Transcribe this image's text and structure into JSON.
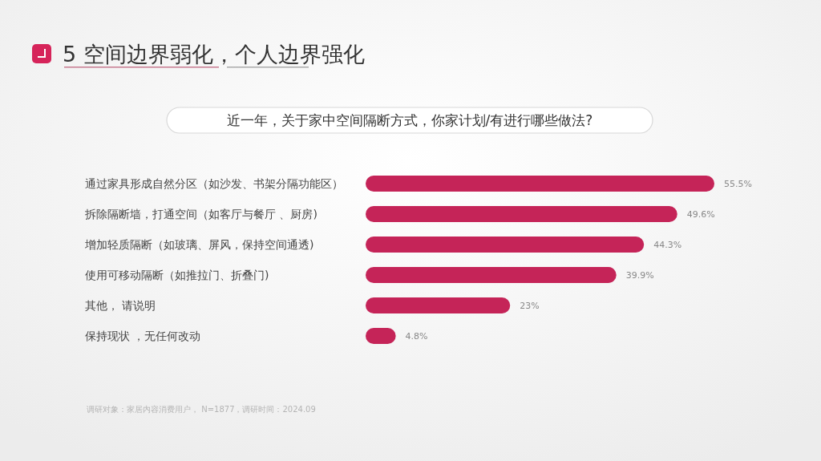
{
  "chart_data": {
    "type": "bar",
    "orientation": "horizontal",
    "title": "5 空间边界弱化，个人边界强化",
    "subtitle": "近一年，关于家中空间隔断方式，你家计划/有进行哪些做法?",
    "categories": [
      "通过家具形成自然分区（如沙发、书架分隔功能区）",
      "拆除隔断墙，打通空间（如客厅与餐厅 、厨房)",
      "增加轻质隔断（如玻璃、屏风，保持空间通透)",
      "使用可移动隔断（如推拉门、折叠门)",
      "其他， 请说明",
      "保持现状 ，无任何改动"
    ],
    "values": [
      55.5,
      49.6,
      44.3,
      39.9,
      23,
      4.8
    ],
    "value_labels": [
      "55.5%",
      "49.6%",
      "44.3%",
      "39.9%",
      "23%",
      "4.8%"
    ],
    "color": "#c52458",
    "annotations": [
      "调研对象：家居内容消费用户， N=1877，调研时间：2024.09"
    ]
  }
}
